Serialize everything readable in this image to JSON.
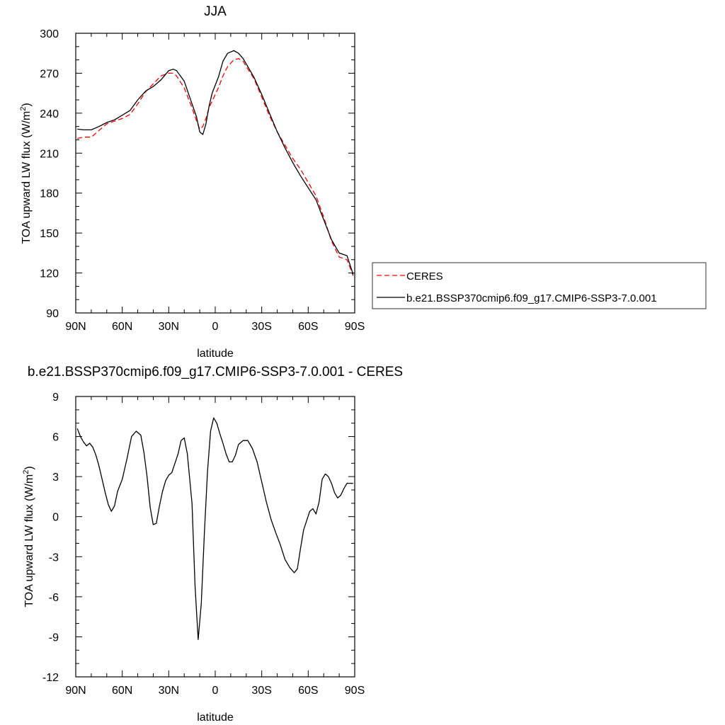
{
  "chart_data": [
    {
      "type": "line",
      "title": "JJA",
      "xlabel": "latitude",
      "ylabel": "TOA upward LW flux (W/m²)",
      "ylabel_parts": [
        "TOA upward LW flux (W/m",
        "2",
        ")"
      ],
      "xlim": [
        90,
        -90
      ],
      "ylim": [
        90,
        300
      ],
      "xticks": [
        90,
        60,
        30,
        0,
        -30,
        -60,
        -90
      ],
      "xtick_labels": [
        "90N",
        "60N",
        "30N",
        "0",
        "30S",
        "60S",
        "90S"
      ],
      "yticks": [
        90,
        120,
        150,
        180,
        210,
        240,
        270,
        300
      ],
      "ytick_labels": [
        "90",
        "120",
        "150",
        "180",
        "210",
        "240",
        "270",
        "300"
      ],
      "grid": false,
      "legend_position": "right",
      "series": [
        {
          "name": "CERES",
          "color": "#ff0000",
          "dash": "dashed",
          "x": [
            89,
            85,
            80,
            75,
            70,
            65,
            60,
            55,
            50,
            45,
            40,
            35,
            30,
            27,
            25,
            20,
            15,
            12,
            10,
            8,
            6,
            4,
            2,
            0,
            -2,
            -5,
            -8,
            -12,
            -15,
            -18,
            -20,
            -25,
            -30,
            -35,
            -40,
            -45,
            -50,
            -55,
            -60,
            -65,
            -70,
            -75,
            -80,
            -85,
            -89
          ],
          "y": [
            221,
            222,
            222,
            227,
            232,
            234,
            236,
            239,
            247,
            256,
            262,
            268,
            270,
            270,
            268,
            259,
            244,
            234,
            228,
            230,
            236,
            244,
            249,
            254,
            259,
            268,
            275,
            280,
            281,
            279,
            275,
            266,
            252,
            238,
            226,
            216,
            206,
            198,
            188,
            178,
            162,
            144,
            132,
            130,
            118
          ]
        },
        {
          "name": "b.e21.BSSP370cmip6.f09_g17.CMIP6-SSP3-7.0.001",
          "color": "#000000",
          "dash": "solid",
          "x": [
            89,
            85,
            80,
            75,
            70,
            65,
            60,
            55,
            50,
            45,
            40,
            35,
            30,
            27,
            25,
            20,
            15,
            12,
            10,
            8,
            6,
            4,
            2,
            0,
            -2,
            -5,
            -8,
            -12,
            -15,
            -18,
            -20,
            -25,
            -30,
            -35,
            -40,
            -45,
            -50,
            -55,
            -60,
            -65,
            -70,
            -75,
            -80,
            -85,
            -89
          ],
          "y": [
            228,
            227.5,
            227.5,
            230,
            233,
            235,
            238.5,
            242,
            250,
            256.5,
            260,
            265,
            272,
            273,
            272,
            264,
            247,
            237,
            226,
            224,
            232,
            245,
            255,
            261,
            267,
            279,
            285,
            287,
            285,
            281,
            277,
            267,
            254,
            240,
            226,
            214,
            203,
            193,
            184,
            175,
            160,
            145,
            135,
            133,
            119
          ]
        }
      ]
    },
    {
      "type": "line",
      "title": "b.e21.BSSP370cmip6.f09_g17.CMIP6-SSP3-7.0.001 - CERES",
      "xlabel": "latitude",
      "ylabel": "TOA upward LW flux (W/m²)",
      "ylabel_parts": [
        "TOA upward LW flux (W/m",
        "2",
        ")"
      ],
      "xlim": [
        90,
        -90
      ],
      "ylim": [
        -12,
        9
      ],
      "xticks": [
        90,
        60,
        30,
        0,
        -30,
        -60,
        -90
      ],
      "xtick_labels": [
        "90N",
        "60N",
        "30N",
        "0",
        "30S",
        "60S",
        "90S"
      ],
      "yticks": [
        -12,
        -9,
        -6,
        -3,
        0,
        3,
        6,
        9
      ],
      "ytick_labels": [
        "-12",
        "-9",
        "-6",
        "-3",
        "0",
        "3",
        "6",
        "9"
      ],
      "grid": false,
      "series": [
        {
          "name": "",
          "color": "#000000",
          "dash": "solid",
          "x": [
            89,
            87,
            85,
            83,
            81,
            79,
            77,
            75,
            73,
            71,
            69,
            67,
            65,
            63,
            60,
            57,
            54,
            51,
            48,
            46,
            44,
            42,
            40,
            38,
            36,
            34,
            32,
            30,
            28,
            26,
            24,
            22,
            20,
            18,
            15,
            13,
            11,
            9,
            7,
            5,
            3,
            1,
            -1,
            -3,
            -5,
            -7,
            -9,
            -11,
            -13,
            -15,
            -18,
            -21,
            -24,
            -27,
            -30,
            -33,
            -36,
            -39,
            -42,
            -45,
            -48,
            -51,
            -53,
            -55,
            -57,
            -59,
            -61,
            -63,
            -65,
            -67,
            -69,
            -71,
            -73,
            -75,
            -77,
            -79,
            -81,
            -83,
            -85,
            -87,
            -89
          ],
          "y": [
            6.6,
            6.0,
            5.6,
            5.3,
            5.5,
            5.2,
            4.6,
            3.8,
            2.8,
            1.8,
            0.9,
            0.4,
            0.8,
            1.9,
            2.8,
            4.3,
            6.0,
            6.4,
            6.1,
            4.8,
            3.0,
            0.7,
            -0.6,
            -0.5,
            0.8,
            1.9,
            2.7,
            3.1,
            3.3,
            4.0,
            4.7,
            5.7,
            5.9,
            4.7,
            1.0,
            -5.2,
            -9.2,
            -6.5,
            -1.2,
            3.4,
            6.4,
            7.4,
            7.0,
            6.2,
            5.5,
            4.7,
            4.1,
            4.1,
            4.6,
            5.4,
            5.7,
            5.7,
            5.1,
            4.1,
            2.6,
            1.1,
            -0.2,
            -1.2,
            -2.1,
            -3.2,
            -3.8,
            -4.2,
            -3.9,
            -2.4,
            -1.0,
            -0.3,
            0.4,
            0.6,
            0.2,
            1.1,
            2.8,
            3.2,
            3.0,
            2.5,
            1.8,
            1.4,
            1.6,
            2.1,
            2.5,
            2.5,
            2.5
          ]
        }
      ]
    }
  ]
}
